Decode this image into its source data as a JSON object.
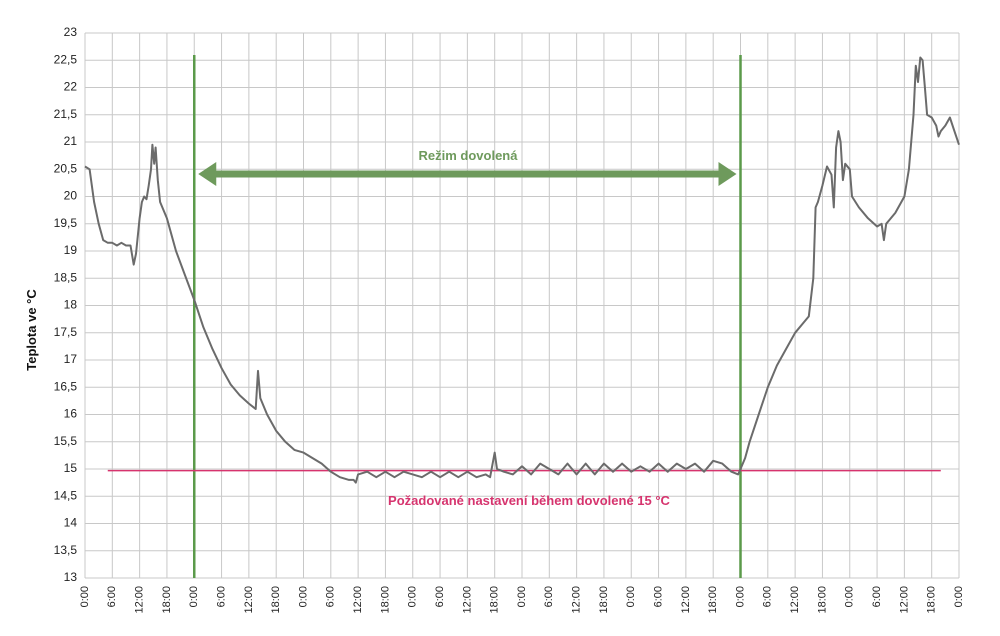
{
  "chart_data": {
    "type": "line",
    "title": "",
    "xlabel": "",
    "ylabel": "Teplota ve °C",
    "ylim": [
      13,
      23
    ],
    "y_ticks": [
      "13",
      "13,5",
      "14",
      "14,5",
      "15",
      "15,5",
      "16",
      "16,5",
      "17",
      "17,5",
      "18",
      "18,5",
      "19",
      "19,5",
      "20",
      "20,5",
      "21",
      "21,5",
      "22",
      "22,5",
      "23"
    ],
    "x_tick_pattern": [
      "0:00",
      "6:00",
      "12:00",
      "18:00"
    ],
    "x_days": 8,
    "x_range_hours": [
      0,
      192
    ],
    "grid": true,
    "colors": {
      "series": "#6b6b6b",
      "grid": "#c8c8c8",
      "vacation_markers": "#5b9a4a",
      "vacation_arrow": "#6e9a5c",
      "setpoint": "#d6346e"
    },
    "series": [
      {
        "color": "#6b6b6b",
        "points": [
          [
            0,
            20.55
          ],
          [
            1,
            20.5
          ],
          [
            2,
            19.9
          ],
          [
            3,
            19.5
          ],
          [
            4,
            19.2
          ],
          [
            5,
            19.15
          ],
          [
            6,
            19.15
          ],
          [
            7,
            19.1
          ],
          [
            8,
            19.15
          ],
          [
            9,
            19.1
          ],
          [
            10,
            19.1
          ],
          [
            10.7,
            18.75
          ],
          [
            11.2,
            18.95
          ],
          [
            12,
            19.6
          ],
          [
            12.5,
            19.9
          ],
          [
            13,
            20.0
          ],
          [
            13.5,
            19.95
          ],
          [
            14,
            20.2
          ],
          [
            14.5,
            20.5
          ],
          [
            14.8,
            20.95
          ],
          [
            15.2,
            20.6
          ],
          [
            15.5,
            20.9
          ],
          [
            16,
            20.3
          ],
          [
            16.5,
            19.9
          ],
          [
            18,
            19.6
          ],
          [
            20,
            19.0
          ],
          [
            22,
            18.55
          ],
          [
            24,
            18.1
          ],
          [
            26,
            17.6
          ],
          [
            28,
            17.2
          ],
          [
            30,
            16.85
          ],
          [
            32,
            16.55
          ],
          [
            34,
            16.35
          ],
          [
            36,
            16.2
          ],
          [
            37.5,
            16.1
          ],
          [
            38,
            16.8
          ],
          [
            38.5,
            16.3
          ],
          [
            40,
            16.0
          ],
          [
            42,
            15.7
          ],
          [
            44,
            15.5
          ],
          [
            46,
            15.35
          ],
          [
            48,
            15.3
          ],
          [
            50,
            15.2
          ],
          [
            52,
            15.1
          ],
          [
            54,
            14.95
          ],
          [
            56,
            14.85
          ],
          [
            58,
            14.8
          ],
          [
            59,
            14.8
          ],
          [
            59.5,
            14.75
          ],
          [
            60,
            14.9
          ],
          [
            62,
            14.95
          ],
          [
            64,
            14.85
          ],
          [
            66,
            14.95
          ],
          [
            68,
            14.85
          ],
          [
            70,
            14.95
          ],
          [
            72,
            14.9
          ],
          [
            74,
            14.85
          ],
          [
            76,
            14.95
          ],
          [
            78,
            14.85
          ],
          [
            80,
            14.95
          ],
          [
            82,
            14.85
          ],
          [
            84,
            14.95
          ],
          [
            86,
            14.85
          ],
          [
            88,
            14.9
          ],
          [
            89,
            14.85
          ],
          [
            90,
            15.3
          ],
          [
            90.5,
            15.0
          ],
          [
            92,
            14.95
          ],
          [
            94,
            14.9
          ],
          [
            96,
            15.05
          ],
          [
            98,
            14.9
          ],
          [
            100,
            15.1
          ],
          [
            102,
            15.0
          ],
          [
            104,
            14.9
          ],
          [
            106,
            15.1
          ],
          [
            108,
            14.9
          ],
          [
            110,
            15.1
          ],
          [
            112,
            14.9
          ],
          [
            114,
            15.1
          ],
          [
            116,
            14.95
          ],
          [
            118,
            15.1
          ],
          [
            120,
            14.95
          ],
          [
            122,
            15.05
          ],
          [
            124,
            14.95
          ],
          [
            126,
            15.1
          ],
          [
            128,
            14.95
          ],
          [
            130,
            15.1
          ],
          [
            132,
            15.0
          ],
          [
            134,
            15.1
          ],
          [
            136,
            14.95
          ],
          [
            138,
            15.15
          ],
          [
            140,
            15.1
          ],
          [
            142,
            14.95
          ],
          [
            143.5,
            14.9
          ],
          [
            144,
            15.0
          ],
          [
            145,
            15.2
          ],
          [
            146,
            15.5
          ],
          [
            148,
            16.0
          ],
          [
            150,
            16.5
          ],
          [
            152,
            16.9
          ],
          [
            154,
            17.2
          ],
          [
            156,
            17.5
          ],
          [
            158,
            17.7
          ],
          [
            159,
            17.8
          ],
          [
            160,
            18.5
          ],
          [
            160.5,
            19.8
          ],
          [
            161,
            19.9
          ],
          [
            162,
            20.2
          ],
          [
            163,
            20.55
          ],
          [
            164,
            20.4
          ],
          [
            164.5,
            19.8
          ],
          [
            165,
            20.9
          ],
          [
            165.5,
            21.2
          ],
          [
            166,
            21.0
          ],
          [
            166.5,
            20.3
          ],
          [
            167,
            20.6
          ],
          [
            168,
            20.5
          ],
          [
            168.5,
            20.0
          ],
          [
            170,
            19.8
          ],
          [
            172,
            19.6
          ],
          [
            174,
            19.45
          ],
          [
            175,
            19.5
          ],
          [
            175.5,
            19.2
          ],
          [
            176,
            19.5
          ],
          [
            178,
            19.7
          ],
          [
            180,
            20.0
          ],
          [
            181,
            20.5
          ],
          [
            182,
            21.5
          ],
          [
            182.5,
            22.4
          ],
          [
            183,
            22.1
          ],
          [
            183.5,
            22.55
          ],
          [
            184,
            22.5
          ],
          [
            184.5,
            22.0
          ],
          [
            185,
            21.5
          ],
          [
            186,
            21.45
          ],
          [
            187,
            21.3
          ],
          [
            187.5,
            21.1
          ],
          [
            188,
            21.2
          ],
          [
            189,
            21.3
          ],
          [
            190,
            21.45
          ],
          [
            191,
            21.2
          ],
          [
            192,
            20.95
          ]
        ]
      }
    ],
    "vacation_start_hour": 24,
    "vacation_end_hour": 144,
    "setpoint_value": 14.97,
    "setpoint_start_hour": 5,
    "setpoint_end_hour": 188,
    "annotations": {
      "vacation_label": "Režim dovolená",
      "setpoint_label": "Požadované nastavení během dovolené 15 °C"
    }
  }
}
